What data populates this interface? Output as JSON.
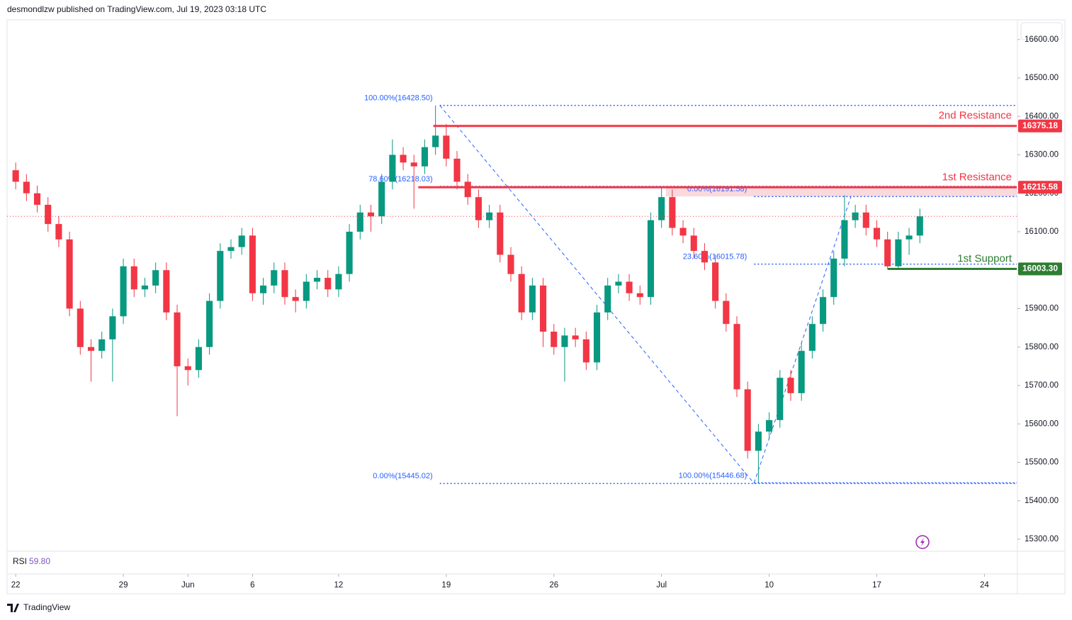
{
  "header": {
    "text": "desmondlzw published on TradingView.com, Jul 19, 2023 03:18 UTC"
  },
  "footer": {
    "brand": "TradingView"
  },
  "indicator": {
    "label": "RSI",
    "value": 59.8,
    "value_label": "59.80"
  },
  "chart_data": {
    "type": "candlestick",
    "up_color": "#089981",
    "down_color": "#f23645",
    "xlim": [
      -0.4,
      46.5
    ],
    "ylim": [
      15268.66,
      16647.47
    ],
    "xticks": [
      {
        "value": 0,
        "label": "22"
      },
      {
        "value": 5,
        "label": "29"
      },
      {
        "value": 8,
        "label": "Jun"
      },
      {
        "value": 11,
        "label": "6"
      },
      {
        "value": 15,
        "label": "12"
      },
      {
        "value": 20,
        "label": "19"
      },
      {
        "value": 25,
        "label": "26"
      },
      {
        "value": 30,
        "label": "Jul"
      },
      {
        "value": 35,
        "label": "10"
      },
      {
        "value": 40,
        "label": "17"
      },
      {
        "value": 45,
        "label": "24"
      }
    ],
    "yticks": [
      {
        "value": 15300,
        "label": "15300.00"
      },
      {
        "value": 15400,
        "label": "15400.00"
      },
      {
        "value": 15500,
        "label": "15500.00"
      },
      {
        "value": 15600,
        "label": "15600.00"
      },
      {
        "value": 15700,
        "label": "15700.00"
      },
      {
        "value": 15800,
        "label": "15800.00"
      },
      {
        "value": 15900,
        "label": "15900.00"
      },
      {
        "value": 16000,
        "label": "16000.00"
      },
      {
        "value": 16100,
        "label": "16100.00"
      },
      {
        "value": 16200,
        "label": "16200.00"
      },
      {
        "value": 16300,
        "label": "16300.00"
      },
      {
        "value": 16400,
        "label": "16400.00"
      },
      {
        "value": 16500,
        "label": "16500.00"
      },
      {
        "value": 16600,
        "label": "16600.00"
      }
    ],
    "x": [
      0,
      0.5,
      1,
      1.5,
      2,
      2.5,
      3,
      3.5,
      4,
      4.5,
      5,
      5.5,
      6,
      6.5,
      7,
      7.5,
      8,
      8.5,
      9,
      9.5,
      10,
      10.5,
      11,
      11.5,
      12,
      12.5,
      13,
      13.5,
      14,
      14.5,
      15,
      15.5,
      16,
      16.5,
      17,
      17.5,
      18,
      18.5,
      19,
      19.5,
      20,
      20.5,
      21,
      21.5,
      22,
      22.5,
      23,
      23.5,
      24,
      24.5,
      25,
      25.5,
      26,
      26.5,
      27,
      27.5,
      28,
      28.5,
      29,
      29.5,
      30,
      30.5,
      31,
      31.5,
      32,
      32.5,
      33,
      33.5,
      34,
      34.5,
      35,
      35.5,
      36,
      36.5,
      37,
      37.5,
      38,
      38.5,
      39,
      39.5,
      40,
      40.5,
      41,
      41.5,
      42
    ],
    "open": [
      16260,
      16230,
      16200,
      16170,
      16120,
      16080,
      15900,
      15800,
      15790,
      15820,
      15880,
      16010,
      15950,
      15960,
      16000,
      15890,
      15750,
      15740,
      15800,
      15920,
      16050,
      16060,
      16090,
      15940,
      15960,
      16000,
      15930,
      15920,
      15970,
      15980,
      15950,
      15990,
      16100,
      16150,
      16140,
      16230,
      16300,
      16280,
      16270,
      16320,
      16350,
      16290,
      16230,
      16190,
      16130,
      16150,
      16040,
      15990,
      15890,
      15960,
      15840,
      15800,
      15830,
      15820,
      15760,
      15890,
      15960,
      15970,
      15940,
      15930,
      16130,
      16190,
      16110,
      16090,
      16050,
      16020,
      15920,
      15860,
      15690,
      15530,
      15580,
      15610,
      15720,
      15680,
      15790,
      15860,
      15930,
      16030,
      16130,
      16150,
      16110,
      16080,
      16010,
      16080,
      16090
    ],
    "high": [
      16280,
      16250,
      16220,
      16190,
      16140,
      16100,
      15920,
      15820,
      15840,
      15900,
      16030,
      16030,
      15980,
      16020,
      16020,
      15910,
      15770,
      15820,
      15940,
      16070,
      16080,
      16110,
      16110,
      15980,
      16020,
      16020,
      15950,
      15990,
      16000,
      16000,
      16010,
      16120,
      16170,
      16170,
      16250,
      16340,
      16320,
      16300,
      16340,
      16428.5,
      16380,
      16310,
      16250,
      16210,
      16170,
      16170,
      16060,
      16010,
      15980,
      15980,
      15860,
      15850,
      15850,
      15840,
      15910,
      15980,
      15990,
      15990,
      15960,
      16150,
      16215,
      16210,
      16130,
      16110,
      16070,
      16040,
      15940,
      15880,
      15710,
      15600,
      15630,
      15740,
      15740,
      15810,
      15880,
      15950,
      16050,
      16195,
      16170,
      16170,
      16130,
      16100,
      16100,
      16110,
      16160
    ],
    "low": [
      16210,
      16180,
      16150,
      16100,
      16060,
      15880,
      15780,
      15710,
      15770,
      15710,
      15860,
      15930,
      15930,
      15940,
      15870,
      15620,
      15700,
      15720,
      15780,
      15900,
      16030,
      16040,
      15920,
      15910,
      15940,
      15910,
      15890,
      15900,
      15950,
      15930,
      15930,
      15970,
      16080,
      16100,
      16120,
      16210,
      16260,
      16160,
      16250,
      16300,
      16270,
      16210,
      16170,
      16110,
      16110,
      16020,
      15970,
      15870,
      15870,
      15800,
      15780,
      15710,
      15800,
      15740,
      15740,
      15870,
      15940,
      15920,
      15910,
      15910,
      16110,
      16090,
      16070,
      16030,
      16000,
      15900,
      15840,
      15670,
      15510,
      15446.68,
      15560,
      15590,
      15660,
      15660,
      15770,
      15840,
      15910,
      16010,
      16110,
      16090,
      16060,
      16003.3,
      16005,
      16040,
      16070
    ],
    "close": [
      16230,
      16200,
      16170,
      16120,
      16080,
      15900,
      15800,
      15790,
      15820,
      15880,
      16010,
      15950,
      15960,
      16000,
      15890,
      15750,
      15740,
      15800,
      15920,
      16050,
      16060,
      16090,
      15940,
      15960,
      16000,
      15930,
      15920,
      15970,
      15980,
      15950,
      15990,
      16100,
      16150,
      16140,
      16230,
      16300,
      16280,
      16270,
      16320,
      16350,
      16290,
      16230,
      16190,
      16130,
      16150,
      16040,
      15990,
      15890,
      15960,
      15840,
      15800,
      15830,
      15820,
      15760,
      15890,
      15960,
      15970,
      15940,
      15930,
      16130,
      16190,
      16110,
      16090,
      16050,
      16020,
      15920,
      15860,
      15690,
      15530,
      15580,
      15610,
      15720,
      15680,
      15790,
      15860,
      15930,
      16030,
      16130,
      16150,
      16110,
      16080,
      16010,
      16080,
      16090,
      16140
    ],
    "levels": [
      {
        "name": "2nd Resistance",
        "value": 16375.18,
        "value_label": "16375.18",
        "color": "#f23645",
        "x": 19.4
      },
      {
        "name": "1st Resistance",
        "value": 16215.58,
        "value_label": "16215.58",
        "color": "#f23645",
        "x": 18.7
      },
      {
        "name": "1st Support",
        "value": 16003.3,
        "value_label": "16003.30",
        "color": "#2e7d32",
        "x": 40.5
      }
    ],
    "zone": {
      "x": 30.2,
      "from": 16191.58,
      "to": 16215.58,
      "color": "#f8c9cd"
    },
    "fibs": [
      {
        "x": 19.7,
        "color": "#2962ff",
        "levels": [
          {
            "value": 16428.5,
            "label": "100.00%(16428.50)"
          },
          {
            "value": 16218.03,
            "label": "78.60%(16218.03)"
          },
          {
            "value": 15445.02,
            "label": "0.00%(15445.02)"
          }
        ]
      },
      {
        "x": 34.3,
        "color": "#2962ff",
        "levels": [
          {
            "value": 16191.58,
            "label": "0.00%(16191.58)"
          },
          {
            "value": 16015.78,
            "label": "23.60%(16015.78)"
          },
          {
            "value": 15446.68,
            "label": "100.00%(15446.68)"
          }
        ]
      }
    ],
    "trendlines": [
      {
        "x": [
          19.7,
          34.3
        ],
        "values": [
          16428.5,
          15445.02
        ]
      },
      {
        "x": [
          34.3,
          38.8
        ],
        "values": [
          15446.68,
          16191.58
        ]
      }
    ]
  }
}
